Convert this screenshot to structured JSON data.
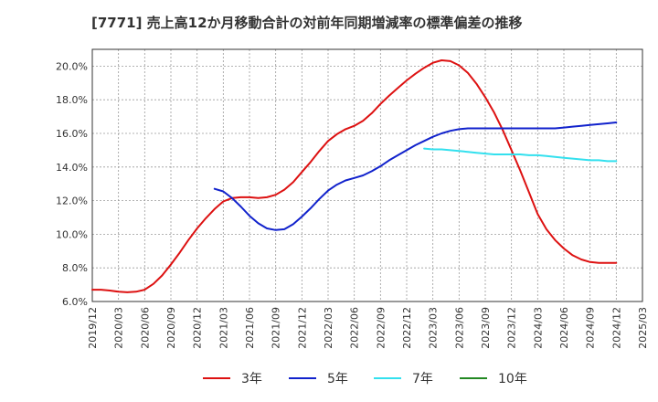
{
  "title": "[7771]  売上高12か月移動合計の対前年同期増減率の標準偏差の推移",
  "chart_data": {
    "type": "line",
    "title": "[7771]  売上高12か月移動合計の対前年同期増減率の標準偏差の推移",
    "xlabel": "",
    "ylabel": "",
    "ylim": [
      6.0,
      21.0
    ],
    "y_ticks": [
      "6.0%",
      "8.0%",
      "10.0%",
      "12.0%",
      "14.0%",
      "16.0%",
      "18.0%",
      "20.0%"
    ],
    "y_tick_values": [
      6,
      8,
      10,
      12,
      14,
      16,
      18,
      20
    ],
    "x_ticks": [
      "2019/12",
      "2020/03",
      "2020/06",
      "2020/09",
      "2020/12",
      "2021/03",
      "2021/06",
      "2021/09",
      "2021/12",
      "2022/03",
      "2022/06",
      "2022/09",
      "2022/12",
      "2023/03",
      "2023/06",
      "2023/09",
      "2023/12",
      "2024/03",
      "2024/06",
      "2024/09",
      "2024/12",
      "2025/03"
    ],
    "grid": true,
    "legend_position": "bottom",
    "series": [
      {
        "name": "3年",
        "color": "#dd1111",
        "x": [
          "2019/12",
          "2020/01",
          "2020/02",
          "2020/03",
          "2020/04",
          "2020/05",
          "2020/06",
          "2020/07",
          "2020/08",
          "2020/09",
          "2020/10",
          "2020/11",
          "2020/12",
          "2021/01",
          "2021/02",
          "2021/03",
          "2021/04",
          "2021/05",
          "2021/06",
          "2021/07",
          "2021/08",
          "2021/09",
          "2021/10",
          "2021/11",
          "2021/12",
          "2022/01",
          "2022/02",
          "2022/03",
          "2022/04",
          "2022/05",
          "2022/06",
          "2022/07",
          "2022/08",
          "2022/09",
          "2022/10",
          "2022/11",
          "2022/12",
          "2023/01",
          "2023/02",
          "2023/03",
          "2023/04",
          "2023/05",
          "2023/06",
          "2023/07",
          "2023/08",
          "2023/09",
          "2023/10",
          "2023/11",
          "2023/12",
          "2024/01",
          "2024/02",
          "2024/03",
          "2024/04",
          "2024/05",
          "2024/06",
          "2024/07",
          "2024/08",
          "2024/09",
          "2024/10",
          "2024/11",
          "2024/12"
        ],
        "values": [
          6.7,
          6.7,
          6.65,
          6.58,
          6.55,
          6.58,
          6.7,
          7.05,
          7.55,
          8.2,
          8.9,
          9.65,
          10.35,
          10.95,
          11.5,
          11.95,
          12.15,
          12.2,
          12.2,
          12.15,
          12.2,
          12.35,
          12.65,
          13.1,
          13.7,
          14.3,
          14.95,
          15.55,
          15.95,
          16.25,
          16.45,
          16.75,
          17.2,
          17.75,
          18.25,
          18.7,
          19.15,
          19.55,
          19.9,
          20.2,
          20.35,
          20.3,
          20.05,
          19.6,
          18.95,
          18.15,
          17.25,
          16.2,
          15.0,
          13.8,
          12.5,
          11.2,
          10.3,
          9.65,
          9.15,
          8.75,
          8.5,
          8.35,
          8.3,
          8.3,
          8.3
        ]
      },
      {
        "name": "5年",
        "color": "#1122cc",
        "x": [
          "2021/02",
          "2021/03",
          "2021/04",
          "2021/05",
          "2021/06",
          "2021/07",
          "2021/08",
          "2021/09",
          "2021/10",
          "2021/11",
          "2021/12",
          "2022/01",
          "2022/02",
          "2022/03",
          "2022/04",
          "2022/05",
          "2022/06",
          "2022/07",
          "2022/08",
          "2022/09",
          "2022/10",
          "2022/11",
          "2022/12",
          "2023/01",
          "2023/02",
          "2023/03",
          "2023/04",
          "2023/05",
          "2023/06",
          "2023/07",
          "2023/08",
          "2023/09",
          "2023/10",
          "2023/11",
          "2023/12",
          "2024/01",
          "2024/02",
          "2024/03",
          "2024/04",
          "2024/05",
          "2024/06",
          "2024/07",
          "2024/08",
          "2024/09",
          "2024/10",
          "2024/11",
          "2024/12"
        ],
        "values": [
          12.7,
          12.55,
          12.15,
          11.65,
          11.1,
          10.65,
          10.35,
          10.25,
          10.3,
          10.6,
          11.05,
          11.55,
          12.1,
          12.6,
          12.95,
          13.2,
          13.35,
          13.5,
          13.75,
          14.05,
          14.4,
          14.7,
          15.0,
          15.3,
          15.55,
          15.8,
          16.0,
          16.15,
          16.25,
          16.3,
          16.3,
          16.3,
          16.3,
          16.3,
          16.3,
          16.3,
          16.3,
          16.3,
          16.3,
          16.3,
          16.35,
          16.4,
          16.45,
          16.5,
          16.55,
          16.6,
          16.65
        ]
      },
      {
        "name": "7年",
        "color": "#33e0ee",
        "x": [
          "2023/02",
          "2023/03",
          "2023/04",
          "2023/05",
          "2023/06",
          "2023/07",
          "2023/08",
          "2023/09",
          "2023/10",
          "2023/11",
          "2023/12",
          "2024/01",
          "2024/02",
          "2024/03",
          "2024/04",
          "2024/05",
          "2024/06",
          "2024/07",
          "2024/08",
          "2024/09",
          "2024/10",
          "2024/11",
          "2024/12"
        ],
        "values": [
          15.1,
          15.05,
          15.05,
          15.0,
          14.95,
          14.9,
          14.85,
          14.8,
          14.75,
          14.75,
          14.75,
          14.75,
          14.7,
          14.7,
          14.65,
          14.6,
          14.55,
          14.5,
          14.45,
          14.4,
          14.4,
          14.35,
          14.35
        ]
      },
      {
        "name": "10年",
        "color": "#228822",
        "x": [],
        "values": []
      }
    ]
  }
}
